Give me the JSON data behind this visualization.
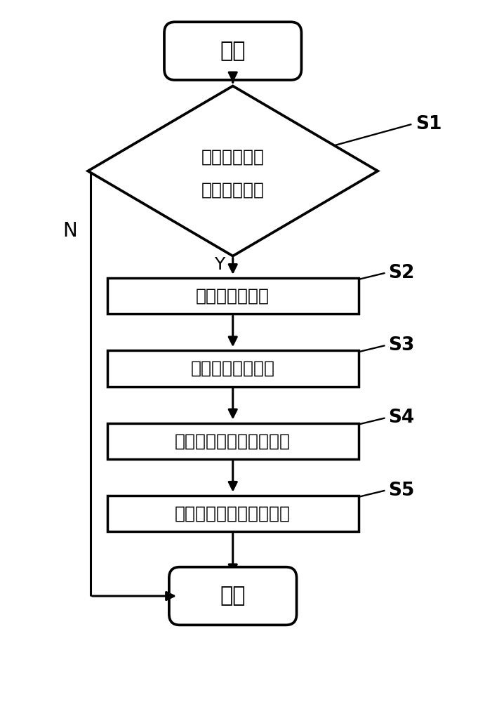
{
  "bg_color": "#ffffff",
  "line_color": "#000000",
  "text_color": "#000000",
  "font_size_main": 18,
  "font_size_label": 17,
  "title": "开始",
  "end_label": "结束",
  "diamond_text_line1": "告警代码是否",
  "diamond_text_line2": "在静态数据中",
  "boxes": [
    {
      "text": "告警预处理分派",
      "label": "S2"
    },
    {
      "text": "告警相关性预处理",
      "label": "S3"
    },
    {
      "text": "告警相关性分析二次处理",
      "label": "S4"
    },
    {
      "text": "告警相关性分析结果上报",
      "label": "S5"
    }
  ],
  "s1_label": "S1",
  "y_label": "Y",
  "n_label": "N",
  "figsize": [
    6.91,
    10.0
  ],
  "dpi": 100
}
